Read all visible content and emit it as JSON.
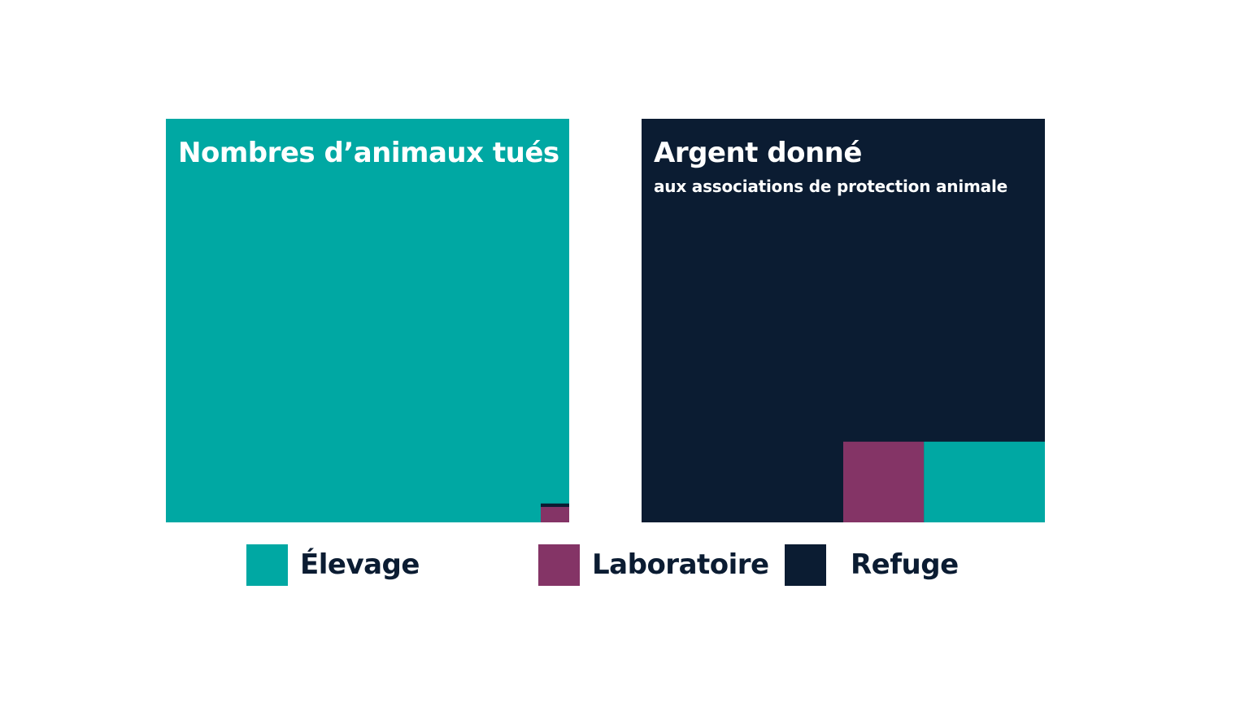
{
  "colors": {
    "elevage": "#00a8a3",
    "laboratoire": "#843466",
    "refuge": "#0b1c32",
    "text_dark": "#0b1c32",
    "text_light": "#ffffff"
  },
  "chart_data": [
    {
      "type": "treemap",
      "title": "Nombres d’animaux tués",
      "subtitle": "",
      "series": [
        {
          "name": "Élevage",
          "value": 99.67,
          "color": "#00a8a3"
        },
        {
          "name": "Laboratoire",
          "value": 0.27,
          "color": "#843466"
        },
        {
          "name": "Refuge",
          "value": 0.06,
          "color": "#0b1c32"
        }
      ],
      "unit": "percent of total"
    },
    {
      "type": "treemap",
      "title": "Argent donné",
      "subtitle": "aux associations de protection animale",
      "series": [
        {
          "name": "Refuge",
          "value": 90,
          "color": "#0b1c32"
        },
        {
          "name": "Laboratoire",
          "value": 4,
          "color": "#843466"
        },
        {
          "name": "Élevage",
          "value": 6,
          "color": "#00a8a3"
        }
      ],
      "unit": "percent of total"
    }
  ],
  "legend": {
    "placement": "bottom",
    "items": [
      {
        "label": "Élevage",
        "color": "#00a8a3"
      },
      {
        "label": "Laboratoire",
        "color": "#843466"
      },
      {
        "label": "Refuge",
        "color": "#0b1c32"
      }
    ]
  }
}
